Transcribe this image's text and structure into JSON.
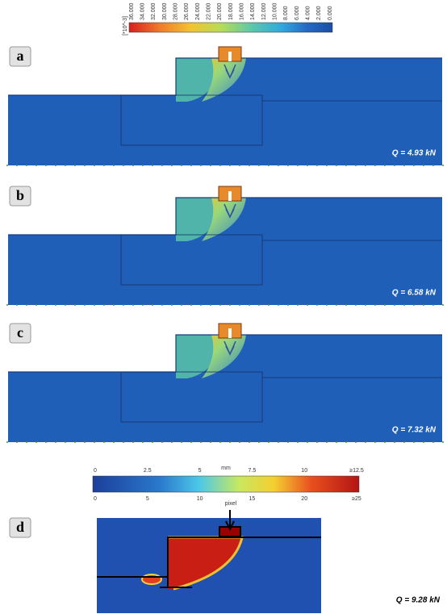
{
  "colorbar_top": {
    "unit": "[*10^-3]",
    "ticks": [
      "36.000",
      "34.000",
      "32.000",
      "30.000",
      "28.000",
      "26.000",
      "24.000",
      "22.000",
      "20.000",
      "18.000",
      "16.000",
      "14.000",
      "12.000",
      "10.000",
      "8.000",
      "6.000",
      "4.000",
      "2.000",
      "0.000"
    ]
  },
  "panels": [
    {
      "label": "a",
      "load": "Q = 4.93 kN"
    },
    {
      "label": "b",
      "load": "Q = 6.58 kN"
    },
    {
      "label": "c",
      "load": "Q = 7.32 kN"
    },
    {
      "label": "d",
      "load": "Q = 9.28 kN"
    }
  ],
  "colorbar_bottom": {
    "unit_top": "mm",
    "ticks_top": [
      "0",
      "2.5",
      "5",
      "7.5",
      "10",
      "≥12.5"
    ],
    "unit_bottom": "pixel",
    "ticks_bottom": [
      "0",
      "5",
      "10",
      "15",
      "20",
      "≥25"
    ],
    "marker": "pixel"
  }
}
